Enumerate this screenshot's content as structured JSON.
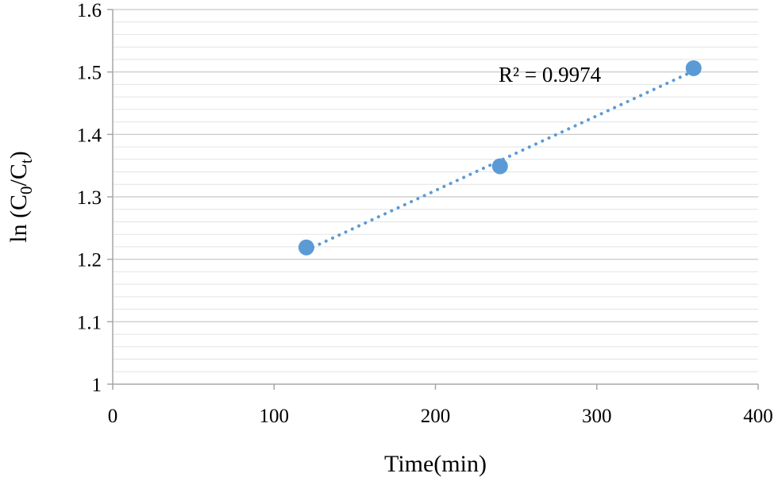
{
  "chart_data": {
    "type": "scatter",
    "title": "",
    "xlabel": "Time(min)",
    "ylabel": {
      "prefix": "ln (C",
      "sub1": "0",
      "middle": "/C",
      "sub2": "t",
      "suffix": ")"
    },
    "xlim": [
      0,
      400
    ],
    "ylim": [
      1,
      1.6
    ],
    "x_ticks": [
      0,
      100,
      200,
      300,
      400
    ],
    "x_tick_labels": [
      "0",
      "100",
      "200",
      "300",
      "400"
    ],
    "y_ticks": [
      1,
      1.1,
      1.2,
      1.3,
      1.4,
      1.5,
      1.6
    ],
    "y_tick_labels": [
      "1",
      "1.1",
      "1.2",
      "1.3",
      "1.4",
      "1.5",
      "1.6"
    ],
    "y_minor_step": 0.02,
    "grid": true,
    "legend": "none",
    "series": [
      {
        "x": [
          120,
          240,
          360
        ],
        "y": [
          1.219,
          1.349,
          1.506
        ],
        "color": "#5b9bd5"
      }
    ],
    "trendline": {
      "type": "linear",
      "style": "dotted",
      "color": "#5b9bd5",
      "x_range": [
        120,
        360
      ],
      "annotation": "R² = 0.9974"
    }
  }
}
